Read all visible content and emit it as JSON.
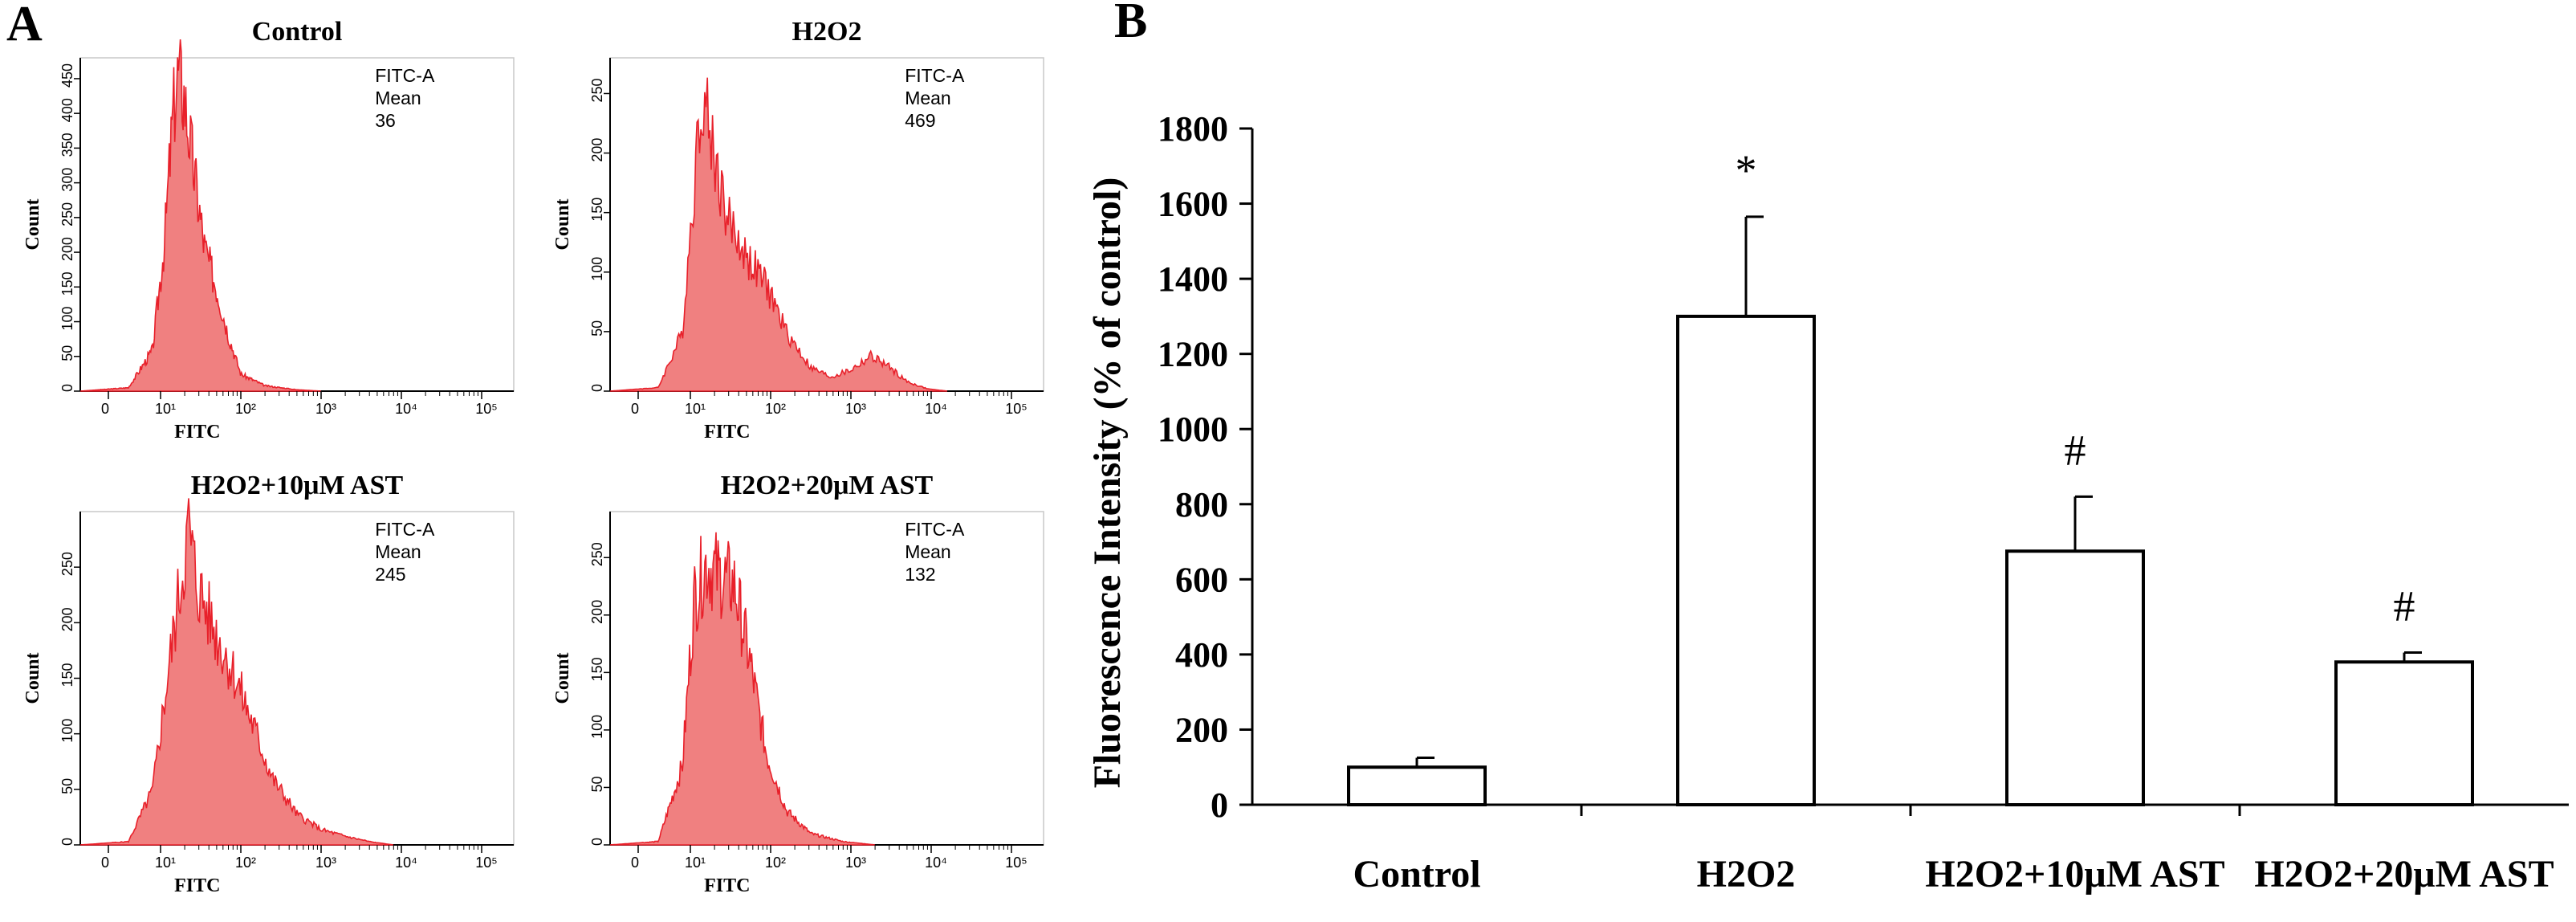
{
  "figure": {
    "panel_a_letter": "A",
    "panel_b_letter": "B"
  },
  "chart_data": [
    {
      "type": "histogram",
      "panel": "A",
      "title": "Control",
      "xlabel": "FITC",
      "ylabel": "Count",
      "x_scale": "log",
      "x_tick_labels": [
        "0",
        "10¹",
        "10²",
        "10³",
        "10⁴",
        "10⁵"
      ],
      "ylim": [
        0,
        480
      ],
      "y_ticks": [
        0,
        50,
        100,
        150,
        200,
        250,
        300,
        350,
        400,
        450
      ],
      "stats": {
        "channel": "FITC-A",
        "label": "Mean",
        "value": "36"
      },
      "profile": [
        [
          0.0,
          0
        ],
        [
          0.6,
          5
        ],
        [
          0.9,
          60
        ],
        [
          1.05,
          220
        ],
        [
          1.15,
          400
        ],
        [
          1.22,
          470
        ],
        [
          1.3,
          430
        ],
        [
          1.42,
          320
        ],
        [
          1.55,
          210
        ],
        [
          1.7,
          150
        ],
        [
          1.85,
          80
        ],
        [
          2.0,
          25
        ],
        [
          2.3,
          8
        ],
        [
          2.7,
          2
        ],
        [
          3.0,
          0
        ]
      ]
    },
    {
      "type": "histogram",
      "panel": "A",
      "title": "H2O2",
      "xlabel": "FITC",
      "ylabel": "Count",
      "x_scale": "log",
      "x_tick_labels": [
        "0",
        "10¹",
        "10²",
        "10³",
        "10⁴",
        "10⁵"
      ],
      "ylim": [
        0,
        280
      ],
      "y_ticks": [
        0,
        50,
        100,
        150,
        200,
        250
      ],
      "stats": {
        "channel": "FITC-A",
        "label": "Mean",
        "value": "469"
      },
      "profile": [
        [
          0.0,
          0
        ],
        [
          0.6,
          3
        ],
        [
          0.9,
          50
        ],
        [
          1.05,
          180
        ],
        [
          1.15,
          260
        ],
        [
          1.25,
          220
        ],
        [
          1.45,
          150
        ],
        [
          1.7,
          115
        ],
        [
          1.95,
          90
        ],
        [
          2.2,
          50
        ],
        [
          2.5,
          20
        ],
        [
          2.75,
          12
        ],
        [
          3.0,
          18
        ],
        [
          3.25,
          30
        ],
        [
          3.45,
          22
        ],
        [
          3.7,
          8
        ],
        [
          3.95,
          2
        ],
        [
          4.2,
          0
        ]
      ]
    },
    {
      "type": "histogram",
      "panel": "A",
      "title": "H2O2+10μM AST",
      "xlabel": "FITC",
      "ylabel": "Count",
      "x_scale": "log",
      "x_tick_labels": [
        "0",
        "10¹",
        "10²",
        "10³",
        "10⁴",
        "10⁵"
      ],
      "ylim": [
        0,
        300
      ],
      "y_ticks": [
        0,
        50,
        100,
        150,
        200,
        250
      ],
      "stats": {
        "channel": "FITC-A",
        "label": "Mean",
        "value": "245"
      },
      "profile": [
        [
          0.0,
          0
        ],
        [
          0.6,
          3
        ],
        [
          0.9,
          50
        ],
        [
          1.1,
          160
        ],
        [
          1.25,
          240
        ],
        [
          1.35,
          290
        ],
        [
          1.45,
          240
        ],
        [
          1.65,
          200
        ],
        [
          1.9,
          160
        ],
        [
          2.15,
          110
        ],
        [
          2.4,
          60
        ],
        [
          2.7,
          28
        ],
        [
          3.0,
          14
        ],
        [
          3.3,
          8
        ],
        [
          3.6,
          3
        ],
        [
          3.9,
          0
        ]
      ]
    },
    {
      "type": "histogram",
      "panel": "A",
      "title": "H2O2+20μM AST",
      "xlabel": "FITC",
      "ylabel": "Count",
      "x_scale": "log",
      "x_tick_labels": [
        "0",
        "10¹",
        "10²",
        "10³",
        "10⁴",
        "10⁵"
      ],
      "ylim": [
        0,
        290
      ],
      "y_ticks": [
        0,
        50,
        100,
        150,
        200,
        250
      ],
      "stats": {
        "channel": "FITC-A",
        "label": "Mean",
        "value": "132"
      },
      "profile": [
        [
          0.0,
          0
        ],
        [
          0.6,
          3
        ],
        [
          0.9,
          70
        ],
        [
          1.05,
          220
        ],
        [
          1.2,
          250
        ],
        [
          1.35,
          240
        ],
        [
          1.55,
          230
        ],
        [
          1.75,
          160
        ],
        [
          1.95,
          80
        ],
        [
          2.2,
          30
        ],
        [
          2.5,
          10
        ],
        [
          2.9,
          3
        ],
        [
          3.3,
          0
        ]
      ]
    },
    {
      "type": "bar",
      "panel": "B",
      "categories": [
        "Control",
        "H2O2",
        "H2O2+10μM AST",
        "H2O2+20μM AST"
      ],
      "values": [
        100,
        1300,
        675,
        380
      ],
      "errors": [
        25,
        265,
        145,
        25
      ],
      "annotations": [
        "",
        "*",
        "#",
        "#"
      ],
      "ylabel": "Fluorescence Intensity (% of control)",
      "ylim": [
        0,
        1800
      ],
      "y_ticks": [
        0,
        200,
        400,
        600,
        800,
        1000,
        1200,
        1400,
        1600,
        1800
      ]
    }
  ],
  "colors": {
    "histogram_fill": "#f08080",
    "histogram_line": "#e8202a",
    "bar_fill": "#ffffff",
    "ink": "#000000"
  }
}
